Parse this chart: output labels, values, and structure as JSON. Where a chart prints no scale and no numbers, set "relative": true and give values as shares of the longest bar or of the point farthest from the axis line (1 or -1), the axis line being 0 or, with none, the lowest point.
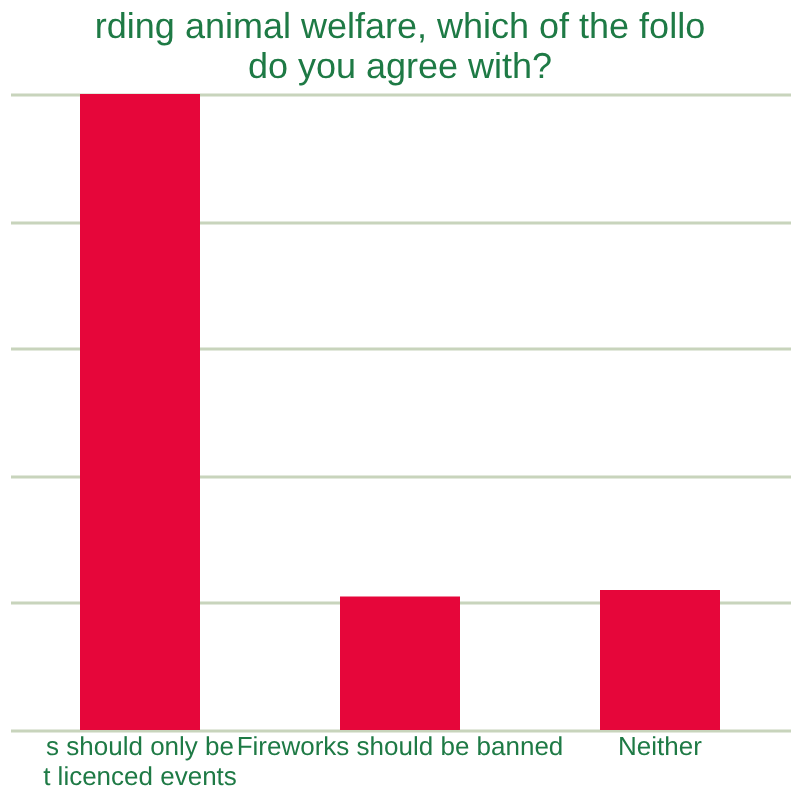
{
  "chart_data": {
    "type": "bar",
    "title": "rding animal welfare, which of the follo\ndo you agree with?",
    "categories": [
      "s should only be\nt licenced events",
      "Fireworks should be banned",
      "Neither"
    ],
    "values": [
      1,
      0.21,
      0.22
    ],
    "color": "#e6063a",
    "relative": true,
    "grid": "y"
  }
}
